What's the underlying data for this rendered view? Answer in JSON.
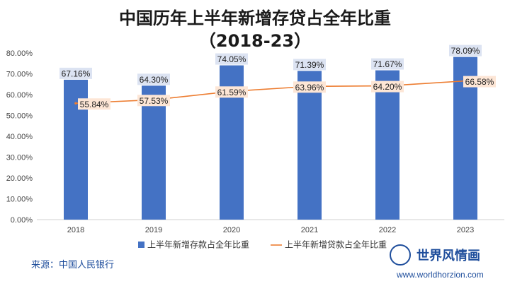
{
  "chart_data": {
    "type": "bar+line",
    "title": "中国历年上半年新增存贷占全年比重",
    "subtitle": "（2018-23）",
    "categories": [
      "2018",
      "2019",
      "2020",
      "2021",
      "2022",
      "2023"
    ],
    "ylim": [
      0,
      80
    ],
    "yticks": [
      "0.00%",
      "10.00%",
      "20.00%",
      "30.00%",
      "40.00%",
      "50.00%",
      "60.00%",
      "70.00%",
      "80.00%"
    ],
    "grid": false,
    "legend_position": "bottom",
    "series": [
      {
        "name": "上半年新增存款占全年比重",
        "type": "bar",
        "color": "#4472c4",
        "values": [
          67.16,
          64.3,
          74.05,
          71.39,
          71.67,
          78.09
        ],
        "labels": [
          "67.16%",
          "64.30%",
          "74.05%",
          "71.39%",
          "71.67%",
          "78.09%"
        ]
      },
      {
        "name": "上半年新增贷款占全年比重",
        "type": "line",
        "color": "#ed7d31",
        "values": [
          55.84,
          57.53,
          61.59,
          63.96,
          64.2,
          66.58
        ],
        "labels": [
          "55.84%",
          "57.53%",
          "61.59%",
          "63.96%",
          "64.20%",
          "66.58%"
        ]
      }
    ]
  },
  "source": "来源：中国人民银行",
  "brand": {
    "name": "世界风情画",
    "url": "www.worldhorzion.com"
  }
}
